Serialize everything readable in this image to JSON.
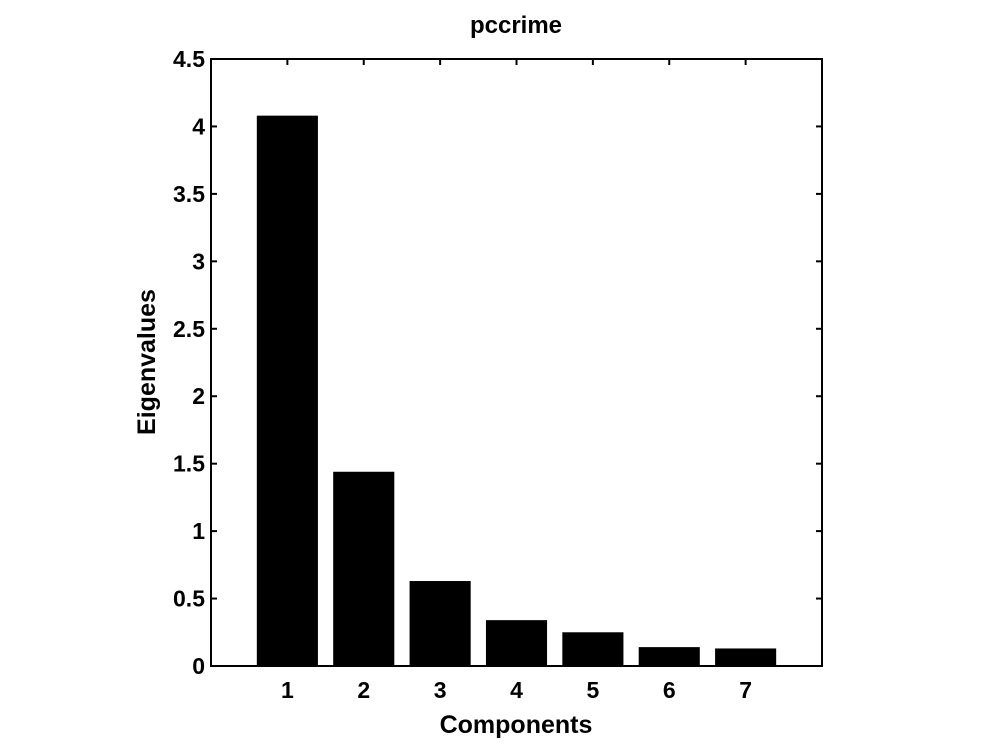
{
  "chart_data": {
    "type": "bar",
    "title": "pccrime",
    "xlabel": "Components",
    "ylabel": "Eigenvalues",
    "categories": [
      "1",
      "2",
      "3",
      "4",
      "5",
      "6",
      "7"
    ],
    "values": [
      4.08,
      1.44,
      0.63,
      0.34,
      0.25,
      0.14,
      0.13
    ],
    "xlim": [
      0,
      8
    ],
    "ylim": [
      0,
      4.5
    ],
    "yticks": [
      0,
      0.5,
      1,
      1.5,
      2,
      2.5,
      3,
      3.5,
      4,
      4.5
    ],
    "yticklabels": [
      "0",
      "0.5",
      "1",
      "1.5",
      "2",
      "2.5",
      "3",
      "3.5",
      "4",
      "4.5"
    ],
    "grid": false,
    "legend": "none",
    "bar_color": "#000000",
    "axis_color": "#000000",
    "background": "#ffffff"
  }
}
